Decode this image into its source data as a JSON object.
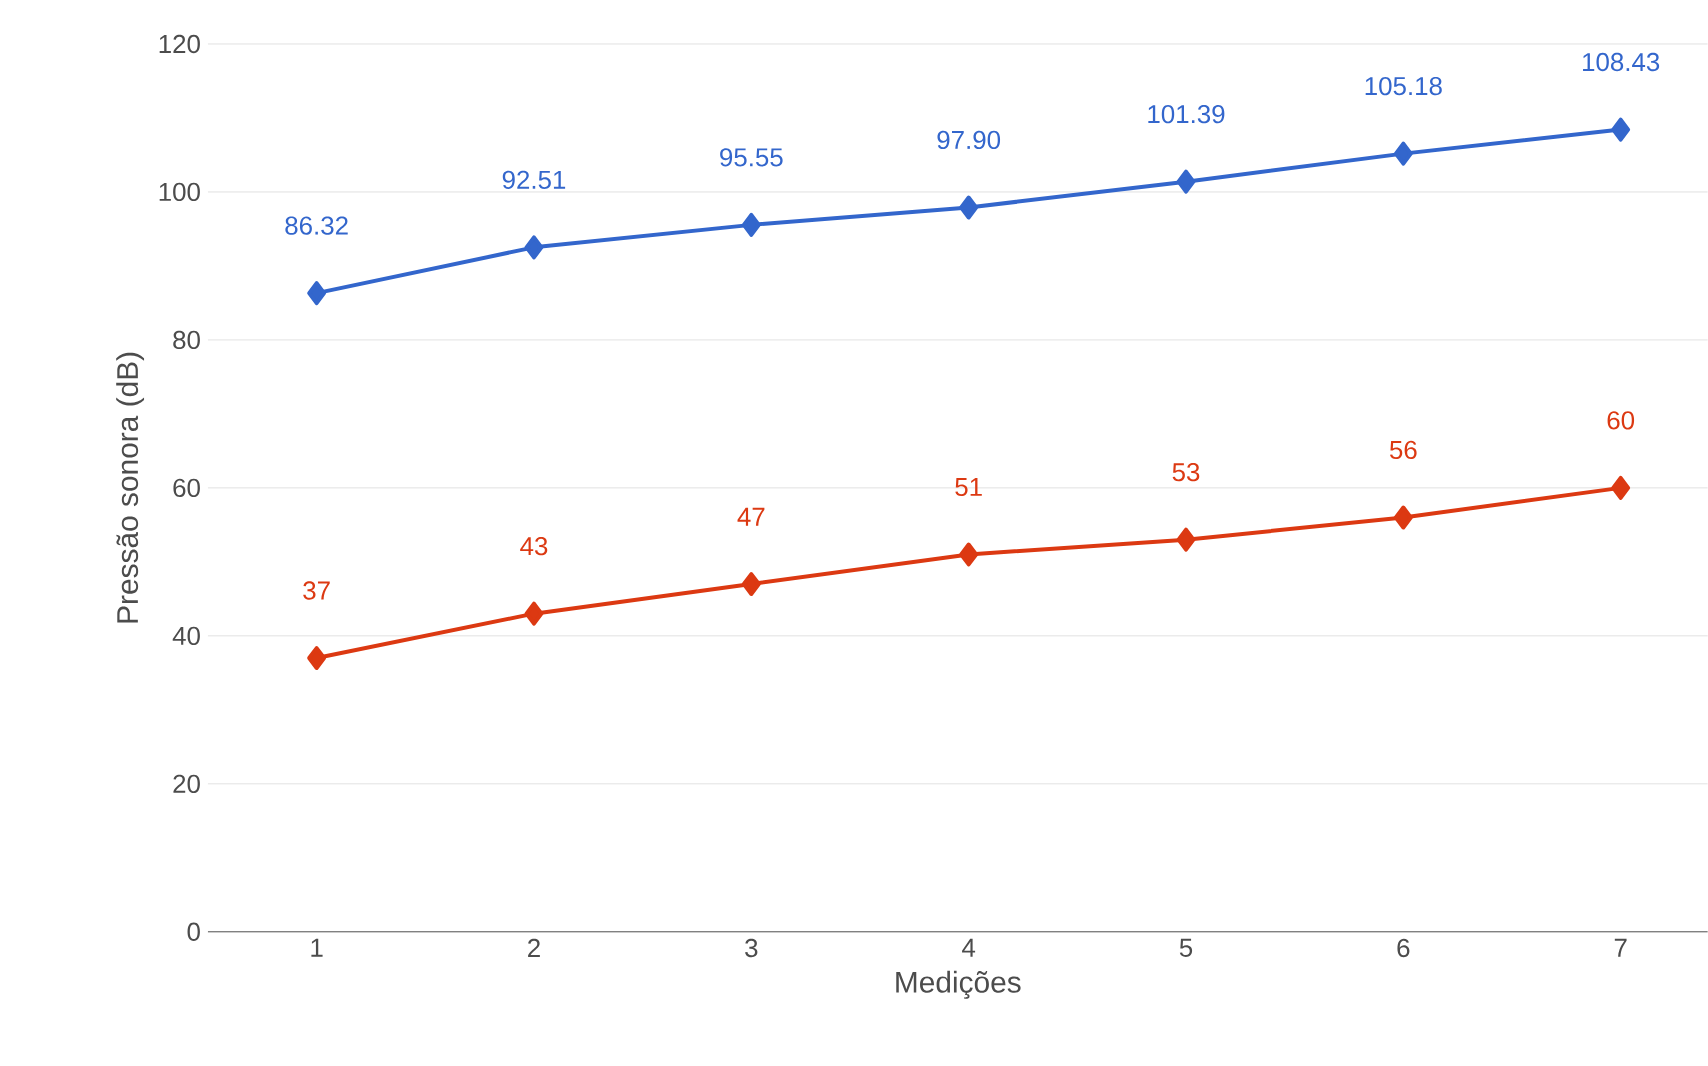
{
  "chart_data": {
    "type": "line",
    "xlabel": "Medições",
    "ylabel": "Pressão sonora (dB)",
    "categories": [
      "1",
      "2",
      "3",
      "4",
      "5",
      "6",
      "7"
    ],
    "series": [
      {
        "color": "#3366cc",
        "values": [
          86.32,
          92.51,
          95.55,
          97.9,
          101.39,
          105.18,
          108.43
        ],
        "value_labels": [
          "86.32",
          "92.51",
          "95.55",
          "97.90",
          "101.39",
          "105.18",
          "108.43"
        ]
      },
      {
        "color": "#dc3912",
        "values": [
          37,
          43,
          47,
          51,
          53,
          56,
          60
        ],
        "value_labels": [
          "37",
          "43",
          "47",
          "51",
          "53",
          "56",
          "60"
        ]
      }
    ],
    "ylim": [
      0,
      120
    ],
    "yticks": [
      0,
      20,
      40,
      60,
      80,
      100,
      120
    ],
    "grid": "y",
    "marker": "diamond",
    "line_style": "solid"
  }
}
